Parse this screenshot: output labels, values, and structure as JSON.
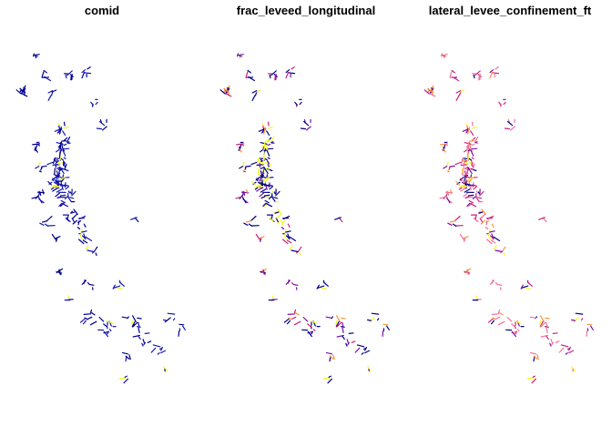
{
  "panels": [
    {
      "title": "comid",
      "scheme": "comid"
    },
    {
      "title": "frac_leveed_longitudinal",
      "scheme": "frac"
    },
    {
      "title": "lateral_levee_confinement_ft",
      "scheme": "lateral"
    }
  ],
  "colors": {
    "navy": "#00008B",
    "blue": "#1515B0",
    "purple": "#7A0EA8",
    "magenta": "#C9237B",
    "pink": "#F2709A",
    "orange": "#F89441",
    "yellow": "#F0F921"
  }
}
